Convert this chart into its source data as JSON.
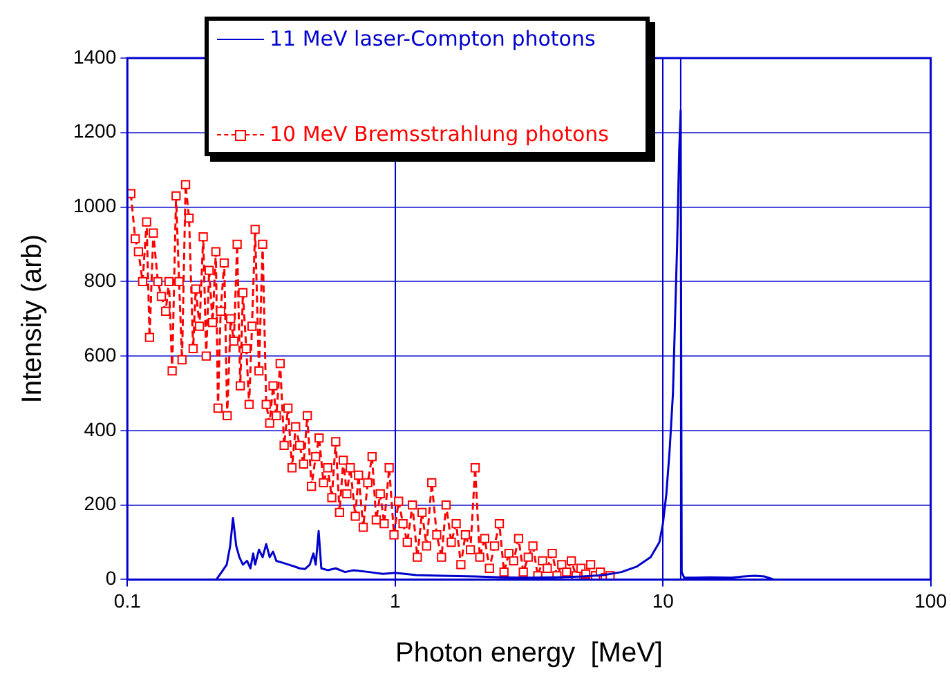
{
  "chart_data": {
    "type": "line",
    "xlabel": "Photon energy  [MeV]",
    "ylabel": "Intensity (arb)",
    "log": "x",
    "grid": true,
    "legend": "top left",
    "xlim": [
      0.1,
      100
    ],
    "xticks": [
      0.1,
      1,
      10,
      100
    ],
    "ylim": [
      0,
      1400
    ],
    "yticks": [
      0,
      200,
      400,
      600,
      800,
      1000,
      1200,
      1400
    ],
    "ref_lines": [
      {
        "axis": "x",
        "value": 11.65,
        "label": null,
        "color": "#0000cc"
      }
    ],
    "series": [
      {
        "name": "11 MeV laser-Compton photons",
        "color": "#0000cc",
        "marker": "none",
        "line_style": "solid",
        "x": [
          0.1,
          0.215,
          0.225,
          0.235,
          0.242,
          0.248,
          0.255,
          0.262,
          0.27,
          0.28,
          0.288,
          0.295,
          0.3,
          0.31,
          0.32,
          0.33,
          0.34,
          0.35,
          0.36,
          0.38,
          0.4,
          0.42,
          0.44,
          0.46,
          0.48,
          0.495,
          0.505,
          0.518,
          0.53,
          0.56,
          0.6,
          0.65,
          0.7,
          0.8,
          0.9,
          1,
          1.2,
          1.5,
          2,
          2.5,
          3,
          4,
          5,
          6,
          7,
          8,
          9,
          9.7,
          10,
          10.3,
          10.6,
          10.9,
          11.1,
          11.3,
          11.5,
          11.65,
          11.75,
          12,
          13,
          15,
          18,
          20,
          22,
          24,
          26,
          30,
          100
        ],
        "values": [
          0,
          0,
          20,
          40,
          90,
          165,
          90,
          60,
          40,
          50,
          30,
          70,
          40,
          80,
          60,
          95,
          60,
          75,
          50,
          45,
          40,
          35,
          30,
          28,
          40,
          70,
          40,
          130,
          30,
          25,
          30,
          20,
          25,
          20,
          15,
          18,
          12,
          10,
          8,
          6,
          5,
          6,
          8,
          12,
          20,
          35,
          60,
          100,
          150,
          230,
          350,
          500,
          700,
          900,
          1150,
          1260,
          20,
          5,
          5,
          6,
          5,
          8,
          10,
          8,
          0,
          0,
          0
        ]
      },
      {
        "name": "10 MeV Bremsstrahlung photons",
        "color": "#ff0000",
        "marker": "square",
        "line_style": "dashed",
        "x": [
          0.103,
          0.107,
          0.11,
          0.114,
          0.118,
          0.121,
          0.125,
          0.13,
          0.134,
          0.139,
          0.143,
          0.147,
          0.152,
          0.156,
          0.16,
          0.165,
          0.17,
          0.176,
          0.18,
          0.186,
          0.192,
          0.197,
          0.202,
          0.208,
          0.214,
          0.218,
          0.223,
          0.23,
          0.236,
          0.243,
          0.25,
          0.257,
          0.264,
          0.27,
          0.278,
          0.285,
          0.292,
          0.3,
          0.31,
          0.32,
          0.33,
          0.34,
          0.35,
          0.36,
          0.372,
          0.385,
          0.398,
          0.412,
          0.425,
          0.44,
          0.455,
          0.47,
          0.487,
          0.505,
          0.52,
          0.54,
          0.56,
          0.58,
          0.6,
          0.62,
          0.64,
          0.66,
          0.68,
          0.71,
          0.73,
          0.76,
          0.79,
          0.82,
          0.85,
          0.88,
          0.91,
          0.95,
          0.99,
          1.03,
          1.07,
          1.11,
          1.16,
          1.21,
          1.26,
          1.31,
          1.37,
          1.43,
          1.49,
          1.55,
          1.62,
          1.69,
          1.76,
          1.83,
          1.91,
          1.99,
          2.07,
          2.16,
          2.25,
          2.35,
          2.45,
          2.55,
          2.66,
          2.77,
          2.89,
          3.01,
          3.14,
          3.27,
          3.41,
          3.55,
          3.7,
          3.86,
          4.02,
          4.19,
          4.37,
          4.55,
          4.74,
          4.94,
          5.15,
          5.37,
          5.6,
          5.84,
          6.09,
          6.35
        ],
        "values": [
          1036,
          915,
          880,
          800,
          960,
          650,
          930,
          800,
          760,
          720,
          800,
          560,
          1030,
          800,
          590,
          1060,
          970,
          620,
          780,
          680,
          920,
          600,
          830,
          690,
          880,
          460,
          720,
          850,
          440,
          700,
          640,
          900,
          520,
          770,
          620,
          470,
          680,
          940,
          560,
          900,
          470,
          420,
          520,
          440,
          580,
          360,
          460,
          300,
          410,
          360,
          310,
          440,
          250,
          330,
          380,
          260,
          300,
          220,
          370,
          180,
          320,
          230,
          300,
          170,
          280,
          140,
          260,
          330,
          160,
          230,
          150,
          300,
          120,
          210,
          150,
          100,
          200,
          60,
          180,
          90,
          260,
          120,
          60,
          200,
          100,
          150,
          40,
          120,
          80,
          300,
          60,
          110,
          30,
          90,
          150,
          20,
          70,
          50,
          110,
          20,
          60,
          90,
          10,
          50,
          30,
          70,
          10,
          40,
          20,
          50,
          10,
          30,
          15,
          40,
          10,
          20,
          5,
          10
        ]
      }
    ]
  }
}
